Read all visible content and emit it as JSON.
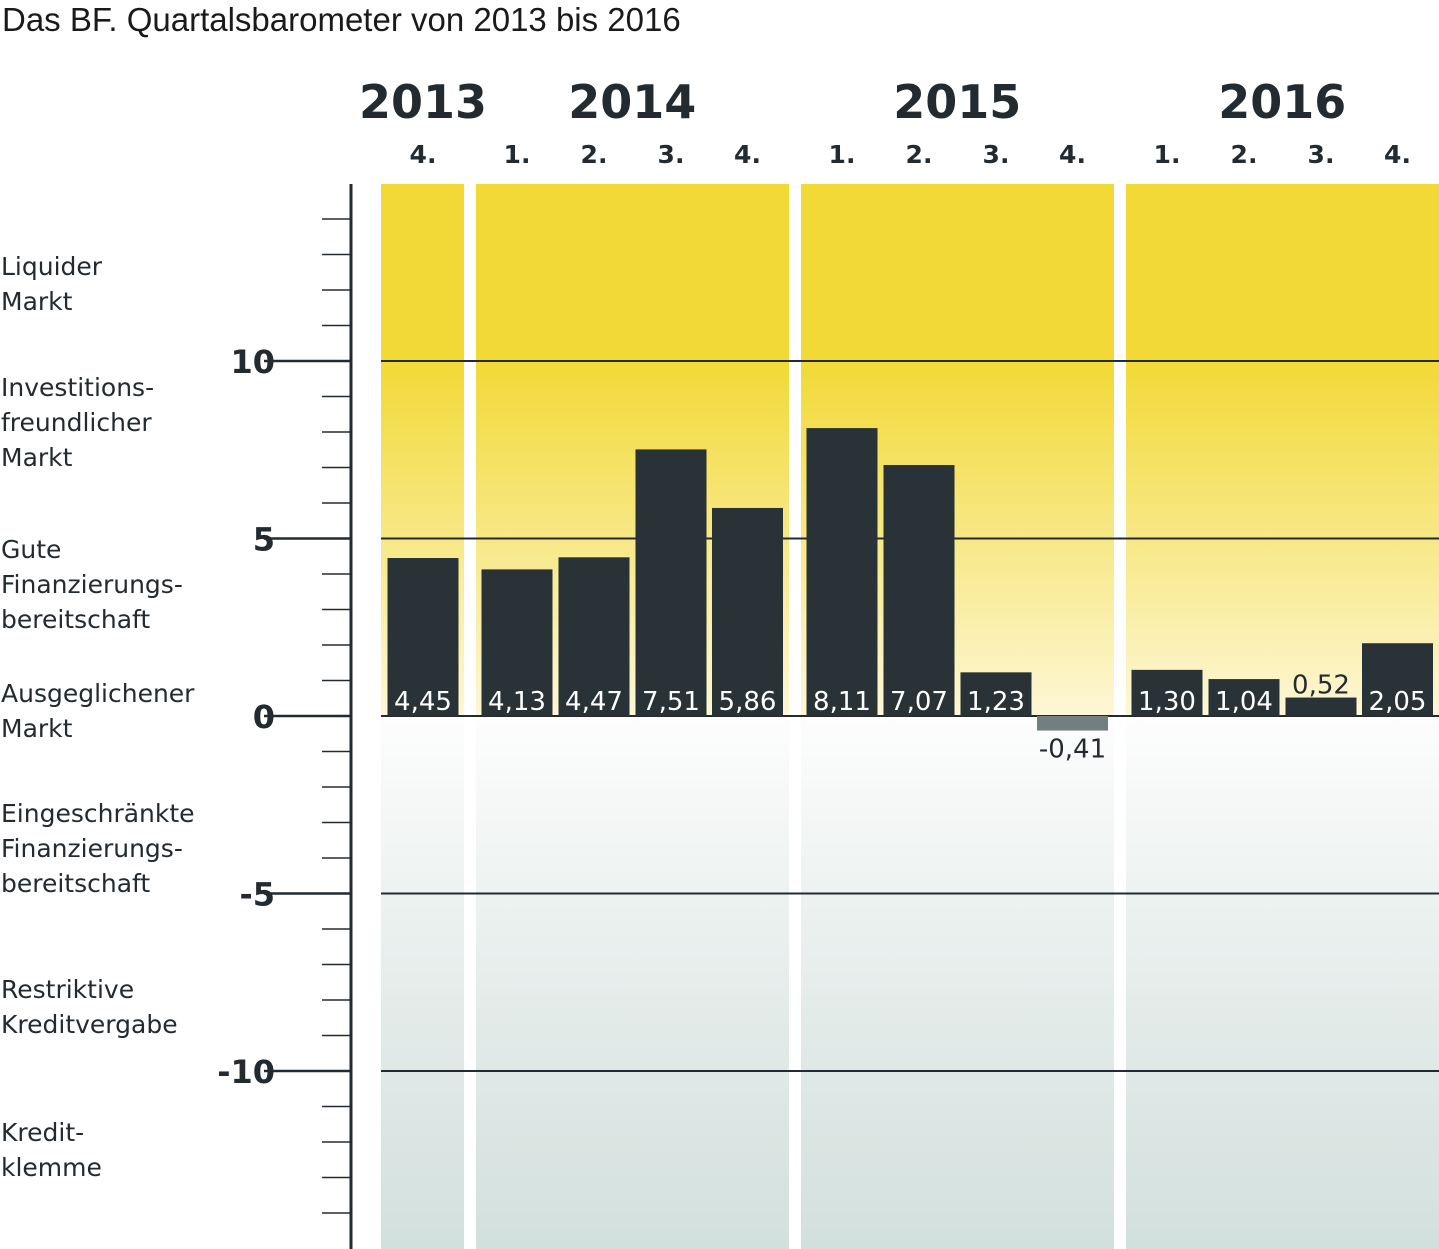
{
  "title": "Das BF. Quartalsbarometer von 2013 bis 2016",
  "colors": {
    "bar": "#293237",
    "bar_negative": "#727e7f",
    "text": "#232b30",
    "top_yellow": "#f2d936",
    "bottom_grey": "#d2e0dd",
    "gap": "#ffffff"
  },
  "zones": [
    {
      "label": "Liquider\nMarkt"
    },
    {
      "label": "Investitions-\nfreundlicher\nMarkt"
    },
    {
      "label": "Gute\nFinanzierungs-\nbereitschaft"
    },
    {
      "label": "Ausgeglichener\nMarkt"
    },
    {
      "label": "Eingeschränkte\nFinanzierungs-\nbereitschaft"
    },
    {
      "label": "Restriktive\nKreditvergabe"
    },
    {
      "label": "Kredit-\nklemme"
    }
  ],
  "chart_data": {
    "type": "bar",
    "title": "Das BF. Quartalsbarometer von 2013 bis 2016",
    "years": [
      {
        "label": "2013",
        "quarters": [
          "4."
        ]
      },
      {
        "label": "2014",
        "quarters": [
          "1.",
          "2.",
          "3.",
          "4."
        ]
      },
      {
        "label": "2015",
        "quarters": [
          "1.",
          "2.",
          "3.",
          "4."
        ]
      },
      {
        "label": "2016",
        "quarters": [
          "1.",
          "2.",
          "3.",
          "4."
        ]
      }
    ],
    "values": [
      4.45,
      4.13,
      4.47,
      7.51,
      5.86,
      8.11,
      7.07,
      1.23,
      -0.41,
      1.3,
      1.04,
      0.52,
      2.05
    ],
    "value_labels": [
      "4,45",
      "4,13",
      "4,47",
      "7,51",
      "5,86",
      "8,11",
      "7,07",
      "1,23",
      "-0,41",
      "1,30",
      "1,04",
      "0,52",
      "2,05"
    ],
    "yticks": [
      10,
      5,
      0,
      -5,
      -10
    ],
    "ytick_labels": [
      "10",
      "5",
      "0",
      "-5",
      "-10"
    ],
    "ylim": [
      -15,
      15
    ],
    "grid": true,
    "xlabel": "",
    "ylabel": ""
  }
}
